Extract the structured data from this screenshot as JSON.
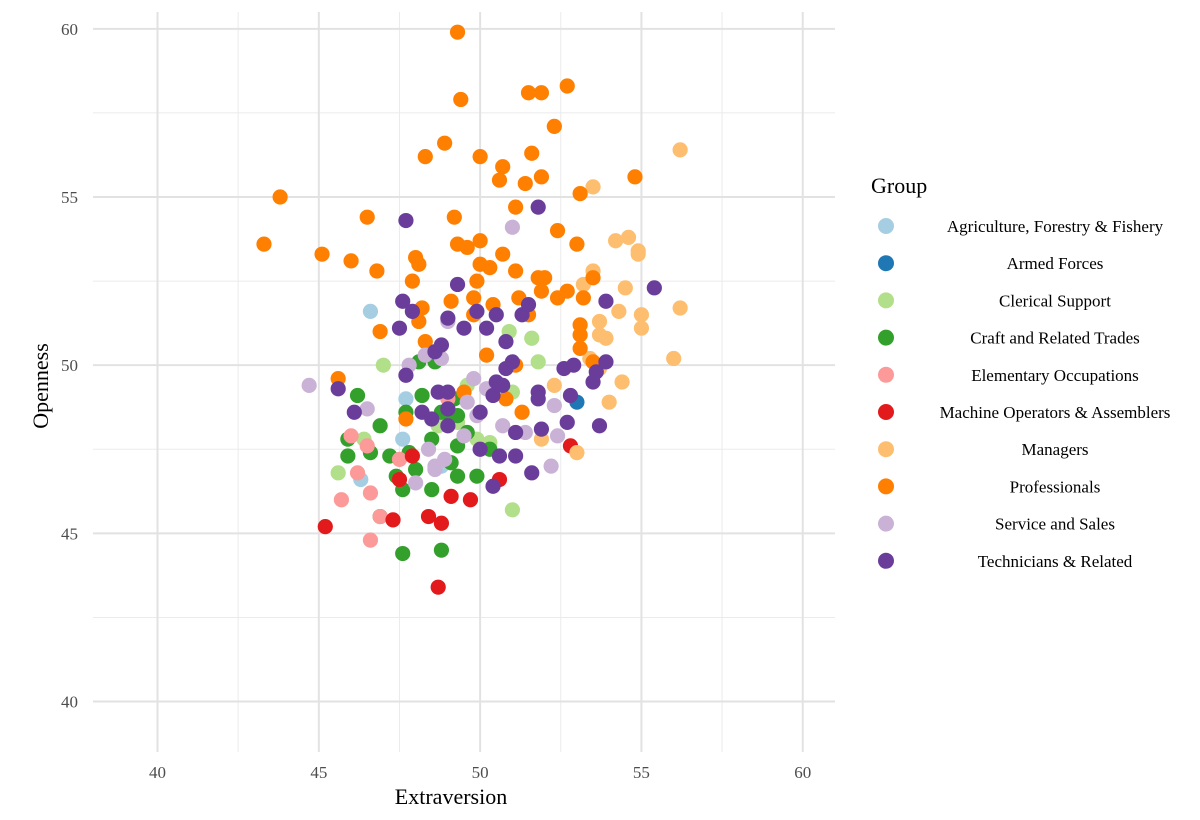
{
  "chart_data": {
    "type": "scatter",
    "title": "",
    "xlabel": "Extraversion",
    "ylabel": "Openness",
    "xlim": [
      38,
      61
    ],
    "ylim": [
      38.5,
      60.5
    ],
    "x_ticks": [
      40,
      45,
      50,
      55,
      60
    ],
    "y_ticks": [
      40,
      45,
      50,
      55,
      60
    ],
    "grid": true,
    "legend_title": "Group",
    "legend_position": "right",
    "series": [
      {
        "name": "Agriculture, Forestry & Fishery",
        "color": "#a6cee3",
        "points": [
          [
            46.6,
            51.6
          ],
          [
            47.6,
            47.8
          ],
          [
            47.7,
            49.0
          ],
          [
            46.3,
            46.6
          ],
          [
            48.8,
            47.0
          ]
        ]
      },
      {
        "name": "Armed Forces",
        "color": "#1f78b4",
        "points": [
          [
            53.0,
            48.9
          ]
        ]
      },
      {
        "name": "Clerical Support",
        "color": "#b2df8a",
        "points": [
          [
            47.0,
            50.0
          ],
          [
            45.6,
            46.8
          ],
          [
            50.9,
            51.0
          ],
          [
            51.6,
            50.8
          ],
          [
            51.8,
            50.1
          ],
          [
            51.0,
            49.2
          ],
          [
            49.3,
            48.3
          ],
          [
            49.9,
            47.8
          ],
          [
            50.3,
            47.7
          ],
          [
            51.0,
            45.7
          ],
          [
            48.7,
            48.2
          ],
          [
            49.6,
            49.4
          ],
          [
            46.4,
            47.8
          ]
        ]
      },
      {
        "name": "Craft and Related Trades",
        "color": "#33a02c",
        "points": [
          [
            46.2,
            49.1
          ],
          [
            45.9,
            47.8
          ],
          [
            45.9,
            47.3
          ],
          [
            46.6,
            47.4
          ],
          [
            46.9,
            48.2
          ],
          [
            47.2,
            47.3
          ],
          [
            47.4,
            46.7
          ],
          [
            47.6,
            46.3
          ],
          [
            47.7,
            48.6
          ],
          [
            47.8,
            47.4
          ],
          [
            48.0,
            46.9
          ],
          [
            48.1,
            50.1
          ],
          [
            48.2,
            49.1
          ],
          [
            48.5,
            47.8
          ],
          [
            48.6,
            50.1
          ],
          [
            48.8,
            48.6
          ],
          [
            49.0,
            48.6
          ],
          [
            49.1,
            47.1
          ],
          [
            49.2,
            49.0
          ],
          [
            49.3,
            48.5
          ],
          [
            49.3,
            47.6
          ],
          [
            49.3,
            46.7
          ],
          [
            49.6,
            48.0
          ],
          [
            49.9,
            46.7
          ],
          [
            50.3,
            47.5
          ],
          [
            46.9,
            45.5
          ],
          [
            47.6,
            44.4
          ],
          [
            48.8,
            44.5
          ],
          [
            48.5,
            46.3
          ]
        ]
      },
      {
        "name": "Elementary Occupations",
        "color": "#fb9a99",
        "points": [
          [
            46.0,
            47.9
          ],
          [
            45.7,
            46.0
          ],
          [
            46.2,
            46.8
          ],
          [
            46.5,
            47.6
          ],
          [
            46.6,
            46.2
          ],
          [
            46.6,
            44.8
          ],
          [
            46.9,
            45.5
          ],
          [
            47.5,
            47.2
          ],
          [
            49.0,
            49.0
          ]
        ]
      },
      {
        "name": "Machine Operators & Assemblers",
        "color": "#e31a1c",
        "points": [
          [
            45.2,
            45.2
          ],
          [
            47.3,
            45.4
          ],
          [
            47.5,
            46.6
          ],
          [
            47.9,
            47.3
          ],
          [
            48.4,
            45.5
          ],
          [
            48.8,
            45.3
          ],
          [
            49.1,
            46.1
          ],
          [
            49.7,
            46.0
          ],
          [
            50.6,
            46.6
          ],
          [
            52.8,
            47.6
          ],
          [
            48.7,
            43.4
          ]
        ]
      },
      {
        "name": "Managers",
        "color": "#fdbf6f",
        "points": [
          [
            56.2,
            56.4
          ],
          [
            53.5,
            55.3
          ],
          [
            54.2,
            53.7
          ],
          [
            54.6,
            53.8
          ],
          [
            54.9,
            53.4
          ],
          [
            54.9,
            53.3
          ],
          [
            53.5,
            52.8
          ],
          [
            53.2,
            52.4
          ],
          [
            54.5,
            52.3
          ],
          [
            54.3,
            51.6
          ],
          [
            55.0,
            51.5
          ],
          [
            55.0,
            51.1
          ],
          [
            56.2,
            51.7
          ],
          [
            53.7,
            51.3
          ],
          [
            53.7,
            50.9
          ],
          [
            53.9,
            50.8
          ],
          [
            53.4,
            50.2
          ],
          [
            56.0,
            50.2
          ],
          [
            53.7,
            49.9
          ],
          [
            54.4,
            49.5
          ],
          [
            54.0,
            48.9
          ],
          [
            52.3,
            49.4
          ],
          [
            51.9,
            47.8
          ],
          [
            53.0,
            47.4
          ]
        ]
      },
      {
        "name": "Professionals",
        "color": "#ff7f00",
        "points": [
          [
            49.3,
            59.9
          ],
          [
            49.4,
            57.9
          ],
          [
            51.5,
            58.1
          ],
          [
            51.9,
            58.1
          ],
          [
            52.7,
            58.3
          ],
          [
            52.3,
            57.1
          ],
          [
            48.9,
            56.6
          ],
          [
            48.3,
            56.2
          ],
          [
            50.0,
            56.2
          ],
          [
            51.6,
            56.3
          ],
          [
            50.7,
            55.9
          ],
          [
            51.9,
            55.6
          ],
          [
            54.8,
            55.6
          ],
          [
            50.6,
            55.5
          ],
          [
            51.4,
            55.4
          ],
          [
            53.1,
            55.1
          ],
          [
            43.8,
            55.0
          ],
          [
            51.1,
            54.7
          ],
          [
            46.5,
            54.4
          ],
          [
            49.2,
            54.4
          ],
          [
            52.4,
            54.0
          ],
          [
            43.3,
            53.6
          ],
          [
            49.3,
            53.6
          ],
          [
            49.6,
            53.5
          ],
          [
            50.0,
            53.7
          ],
          [
            53.0,
            53.6
          ],
          [
            45.1,
            53.3
          ],
          [
            46.0,
            53.1
          ],
          [
            48.0,
            53.2
          ],
          [
            48.1,
            53.0
          ],
          [
            50.0,
            53.0
          ],
          [
            50.3,
            52.9
          ],
          [
            50.7,
            53.3
          ],
          [
            46.8,
            52.8
          ],
          [
            49.9,
            52.5
          ],
          [
            51.1,
            52.8
          ],
          [
            51.8,
            52.6
          ],
          [
            52.0,
            52.6
          ],
          [
            53.5,
            52.6
          ],
          [
            47.9,
            52.5
          ],
          [
            49.8,
            52.0
          ],
          [
            50.4,
            51.8
          ],
          [
            51.2,
            52.0
          ],
          [
            51.9,
            52.2
          ],
          [
            52.4,
            52.0
          ],
          [
            52.7,
            52.2
          ],
          [
            53.2,
            52.0
          ],
          [
            48.2,
            51.7
          ],
          [
            48.1,
            51.3
          ],
          [
            49.1,
            51.9
          ],
          [
            49.8,
            51.5
          ],
          [
            51.5,
            51.5
          ],
          [
            53.1,
            51.2
          ],
          [
            53.1,
            50.9
          ],
          [
            46.9,
            51.0
          ],
          [
            48.3,
            50.7
          ],
          [
            50.2,
            50.3
          ],
          [
            51.1,
            50.0
          ],
          [
            53.1,
            50.5
          ],
          [
            53.5,
            50.1
          ],
          [
            45.6,
            49.6
          ],
          [
            47.7,
            48.4
          ],
          [
            49.5,
            49.2
          ],
          [
            50.8,
            49.0
          ],
          [
            51.3,
            48.6
          ]
        ]
      },
      {
        "name": "Service and Sales",
        "color": "#cab2d6",
        "points": [
          [
            51.0,
            54.1
          ],
          [
            44.7,
            49.4
          ],
          [
            46.5,
            48.7
          ],
          [
            47.8,
            50.0
          ],
          [
            48.3,
            50.3
          ],
          [
            48.8,
            50.2
          ],
          [
            49.0,
            51.3
          ],
          [
            49.8,
            49.6
          ],
          [
            50.2,
            49.3
          ],
          [
            49.6,
            48.9
          ],
          [
            48.4,
            47.5
          ],
          [
            48.6,
            47.0
          ],
          [
            48.9,
            47.2
          ],
          [
            49.5,
            47.9
          ],
          [
            50.7,
            48.2
          ],
          [
            51.4,
            48.0
          ],
          [
            52.3,
            48.8
          ],
          [
            52.2,
            47.0
          ],
          [
            52.4,
            47.9
          ],
          [
            48.0,
            46.5
          ],
          [
            48.6,
            46.9
          ],
          [
            49.9,
            48.5
          ]
        ]
      },
      {
        "name": "Technicians & Related",
        "color": "#6a3d9a",
        "points": [
          [
            47.7,
            54.3
          ],
          [
            51.8,
            54.7
          ],
          [
            55.4,
            52.3
          ],
          [
            49.3,
            52.4
          ],
          [
            53.9,
            51.9
          ],
          [
            47.6,
            51.9
          ],
          [
            47.9,
            51.6
          ],
          [
            49.0,
            51.4
          ],
          [
            49.5,
            51.1
          ],
          [
            49.9,
            51.6
          ],
          [
            50.2,
            51.1
          ],
          [
            50.5,
            51.5
          ],
          [
            51.3,
            51.5
          ],
          [
            51.5,
            51.8
          ],
          [
            47.5,
            51.1
          ],
          [
            48.6,
            50.4
          ],
          [
            48.8,
            50.6
          ],
          [
            50.8,
            50.7
          ],
          [
            51.0,
            50.1
          ],
          [
            47.7,
            49.7
          ],
          [
            45.6,
            49.3
          ],
          [
            48.7,
            49.2
          ],
          [
            49.0,
            49.2
          ],
          [
            50.5,
            49.5
          ],
          [
            51.8,
            49.2
          ],
          [
            52.6,
            49.9
          ],
          [
            52.9,
            50.0
          ],
          [
            53.6,
            49.8
          ],
          [
            53.9,
            50.1
          ],
          [
            53.5,
            49.5
          ],
          [
            51.8,
            49.0
          ],
          [
            52.8,
            49.1
          ],
          [
            46.1,
            48.6
          ],
          [
            48.2,
            48.6
          ],
          [
            48.5,
            48.4
          ],
          [
            49.0,
            48.7
          ],
          [
            50.0,
            48.6
          ],
          [
            50.4,
            49.1
          ],
          [
            52.7,
            48.3
          ],
          [
            53.7,
            48.2
          ],
          [
            51.1,
            48.0
          ],
          [
            51.9,
            48.1
          ],
          [
            50.0,
            47.5
          ],
          [
            50.6,
            47.3
          ],
          [
            51.1,
            47.3
          ],
          [
            50.4,
            46.4
          ],
          [
            51.6,
            46.8
          ],
          [
            50.8,
            49.9
          ],
          [
            50.7,
            49.4
          ],
          [
            49.0,
            48.2
          ]
        ]
      }
    ]
  }
}
